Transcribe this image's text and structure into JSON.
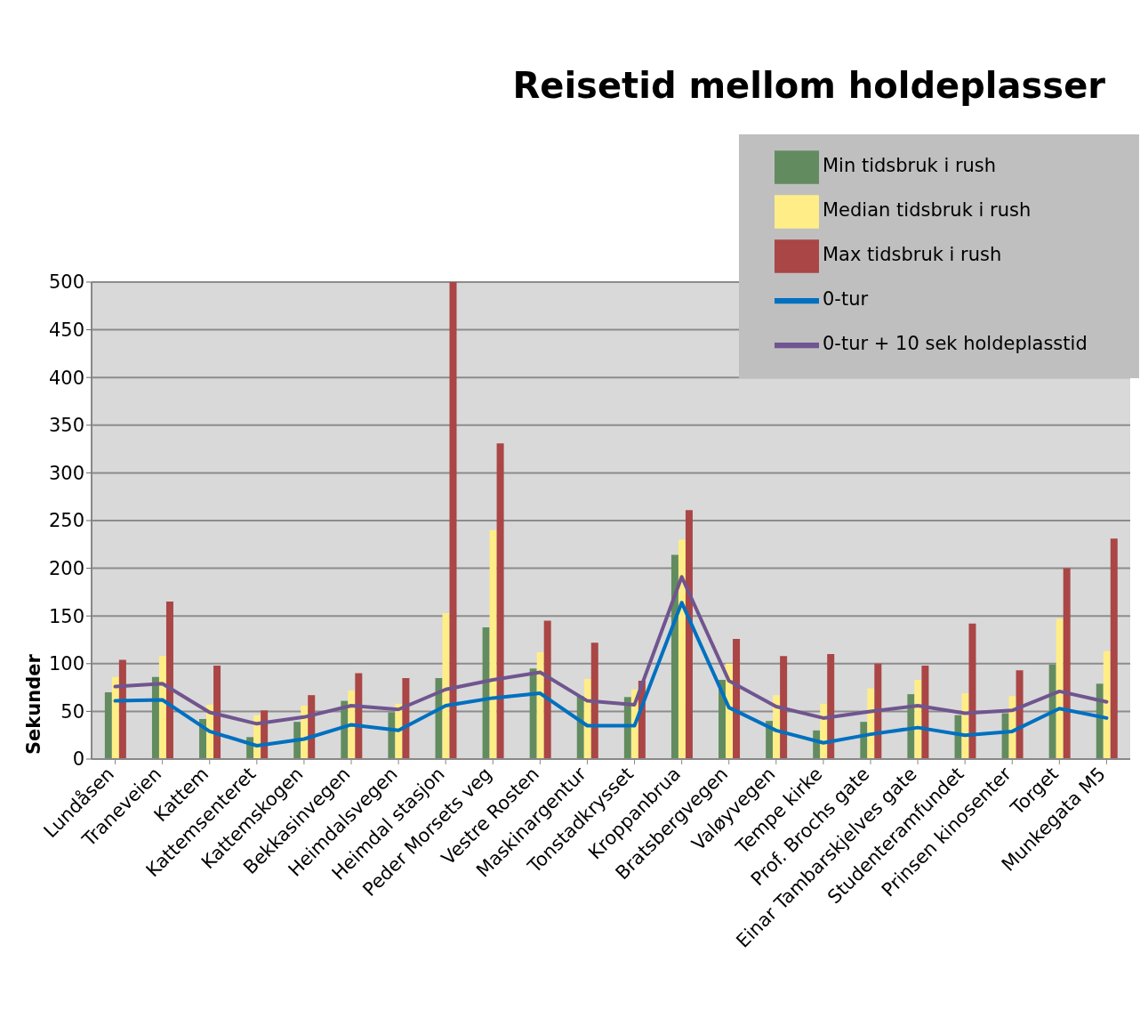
{
  "chart_data": {
    "type": "bar",
    "title": "Reisetid mellom holdeplasser",
    "ylabel": "Sekunder",
    "categories": [
      "Lundåsen",
      "Traneveien",
      "Kattem",
      "Kattemsenteret",
      "Kattemskogen",
      "Bekkasinvegen",
      "Heimdalsvegen",
      "Heimdal stasjon",
      "Peder Morsets veg",
      "Vestre Rosten",
      "Maskinargentur",
      "Tonstadkrysset",
      "Kroppanbrua",
      "Bratsbergvegen",
      "Valøyvegen",
      "Tempe kirke",
      "Prof. Brochs gate",
      "Einar Tambarskjelves gate",
      "Studenteramfundet",
      "Prinsen kinosenter",
      "Torget",
      "Munkegata M5"
    ],
    "series": [
      {
        "name": "Min tidsbruk i rush",
        "color": "#628c5f",
        "values": [
          70,
          86,
          42,
          23,
          39,
          61,
          49,
          85,
          138,
          95,
          66,
          65,
          214,
          83,
          40,
          30,
          39,
          68,
          46,
          48,
          99,
          79
        ]
      },
      {
        "name": "Median tidsbruk i rush",
        "color": "#ffee88",
        "values": [
          86,
          108,
          57,
          46,
          56,
          72,
          58,
          153,
          240,
          112,
          84,
          73,
          230,
          100,
          67,
          58,
          74,
          83,
          69,
          66,
          147,
          113
        ]
      },
      {
        "name": "Max tidsbruk i rush",
        "color": "#aa4645",
        "values": [
          104,
          165,
          98,
          51,
          67,
          90,
          85,
          500,
          331,
          145,
          122,
          82,
          261,
          126,
          108,
          110,
          100,
          98,
          142,
          93,
          200,
          231
        ]
      },
      {
        "name": "0-tur",
        "type": "line",
        "color": "#0070c0",
        "values": [
          61,
          62,
          29,
          14,
          21,
          36,
          30,
          56,
          64,
          69,
          35,
          35,
          164,
          54,
          30,
          17,
          26,
          33,
          25,
          29,
          53,
          43
        ]
      },
      {
        "name": "0-tur + 10 sek holdeplasstid",
        "type": "line",
        "color": "#70558f",
        "values": [
          76,
          79,
          49,
          37,
          44,
          56,
          52,
          73,
          83,
          91,
          61,
          57,
          191,
          82,
          55,
          43,
          50,
          56,
          48,
          51,
          71,
          60
        ]
      }
    ],
    "ylim": [
      0,
      500
    ],
    "yticks": [
      0,
      50,
      100,
      150,
      200,
      250,
      300,
      350,
      400,
      450,
      500
    ],
    "grid": "y",
    "legend": "top right",
    "marker": "none",
    "line_style": "solid"
  }
}
